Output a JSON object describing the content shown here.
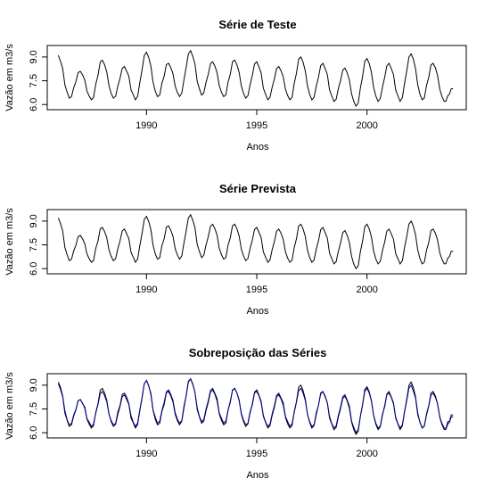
{
  "chart_data": [
    {
      "type": "line",
      "title": "Série de Teste",
      "xlabel": "Anos",
      "ylabel": "Vazão em m3/s",
      "xlim": [
        1985.5,
        2004.5
      ],
      "ylim": [
        5.9,
        9.5
      ],
      "xticks": [
        "1990",
        "1995",
        "2000"
      ],
      "yticks": [
        "6.0",
        "7.5",
        "9.0"
      ],
      "grid": false,
      "series": [
        {
          "color": "#000000",
          "x": [
            1986.0,
            1986.5,
            1987.0,
            1987.5,
            1988.0,
            1988.5,
            1989.0,
            1989.5,
            1990.0,
            1990.5,
            1991.0,
            1991.5,
            1992.0,
            1992.5,
            1993.0,
            1993.5,
            1994.0,
            1994.5,
            1995.0,
            1995.5,
            1996.0,
            1996.5,
            1997.0,
            1997.5,
            1998.0,
            1998.5,
            1999.0,
            1999.5,
            2000.0,
            2000.5,
            2001.0,
            2001.5,
            2002.0,
            2002.5,
            2003.0,
            2003.5,
            2003.9
          ],
          "y": [
            9.1,
            6.4,
            8.1,
            6.3,
            8.8,
            6.4,
            8.4,
            6.3,
            9.3,
            6.5,
            8.6,
            6.5,
            9.4,
            6.6,
            8.7,
            6.5,
            8.8,
            6.4,
            8.7,
            6.3,
            8.4,
            6.3,
            9.0,
            6.3,
            8.6,
            6.2,
            8.3,
            5.9,
            8.9,
            6.2,
            8.6,
            6.2,
            9.2,
            6.3,
            8.6,
            6.2,
            7.0
          ]
        }
      ]
    },
    {
      "type": "line",
      "title": "Série Prevista",
      "xlabel": "Anos",
      "ylabel": "Vazão em m3/s",
      "xlim": [
        1985.5,
        2004.5
      ],
      "ylim": [
        5.9,
        9.5
      ],
      "xticks": [
        "1990",
        "1995",
        "2000"
      ],
      "yticks": [
        "6.0",
        "7.5",
        "9.0"
      ],
      "grid": false,
      "series": [
        {
          "color": "#000000",
          "x": [
            1986.0,
            1986.5,
            1987.0,
            1987.5,
            1988.0,
            1988.5,
            1989.0,
            1989.5,
            1990.0,
            1990.5,
            1991.0,
            1991.5,
            1992.0,
            1992.5,
            1993.0,
            1993.5,
            1994.0,
            1994.5,
            1995.0,
            1995.5,
            1996.0,
            1996.5,
            1997.0,
            1997.5,
            1998.0,
            1998.5,
            1999.0,
            1999.5,
            2000.0,
            2000.5,
            2001.0,
            2001.5,
            2002.0,
            2002.5,
            2003.0,
            2003.5,
            2003.9
          ],
          "y": [
            9.2,
            6.5,
            8.1,
            6.4,
            8.6,
            6.5,
            8.5,
            6.4,
            9.3,
            6.6,
            8.7,
            6.6,
            9.4,
            6.7,
            8.8,
            6.6,
            8.8,
            6.5,
            8.6,
            6.4,
            8.5,
            6.4,
            8.8,
            6.4,
            8.6,
            6.3,
            8.4,
            6.0,
            8.8,
            6.3,
            8.5,
            6.3,
            9.0,
            6.3,
            8.5,
            6.3,
            7.1
          ]
        }
      ]
    },
    {
      "type": "line",
      "title": "Sobreposição das Séries",
      "xlabel": "Anos",
      "ylabel": "Vazão em m3/s",
      "xlim": [
        1985.5,
        2004.5
      ],
      "ylim": [
        5.9,
        9.5
      ],
      "xticks": [
        "1990",
        "1995",
        "2000"
      ],
      "yticks": [
        "6.0",
        "7.5",
        "9.0"
      ],
      "grid": false,
      "series": [
        {
          "color": "#000000",
          "x": [
            1986.0,
            1986.5,
            1987.0,
            1987.5,
            1988.0,
            1988.5,
            1989.0,
            1989.5,
            1990.0,
            1990.5,
            1991.0,
            1991.5,
            1992.0,
            1992.5,
            1993.0,
            1993.5,
            1994.0,
            1994.5,
            1995.0,
            1995.5,
            1996.0,
            1996.5,
            1997.0,
            1997.5,
            1998.0,
            1998.5,
            1999.0,
            1999.5,
            2000.0,
            2000.5,
            2001.0,
            2001.5,
            2002.0,
            2002.5,
            2003.0,
            2003.5,
            2003.9
          ],
          "y": [
            9.1,
            6.4,
            8.1,
            6.3,
            8.8,
            6.4,
            8.4,
            6.3,
            9.3,
            6.5,
            8.6,
            6.5,
            9.4,
            6.6,
            8.7,
            6.5,
            8.8,
            6.4,
            8.7,
            6.3,
            8.4,
            6.3,
            9.0,
            6.3,
            8.6,
            6.2,
            8.3,
            5.9,
            8.9,
            6.2,
            8.6,
            6.2,
            9.2,
            6.3,
            8.6,
            6.2,
            7.0
          ]
        },
        {
          "color": "#00008b",
          "x": [
            1986.0,
            1986.5,
            1987.0,
            1987.5,
            1988.0,
            1988.5,
            1989.0,
            1989.5,
            1990.0,
            1990.5,
            1991.0,
            1991.5,
            1992.0,
            1992.5,
            1993.0,
            1993.5,
            1994.0,
            1994.5,
            1995.0,
            1995.5,
            1996.0,
            1996.5,
            1997.0,
            1997.5,
            1998.0,
            1998.5,
            1999.0,
            1999.5,
            2000.0,
            2000.5,
            2001.0,
            2001.5,
            2002.0,
            2002.5,
            2003.0,
            2003.5,
            2003.9
          ],
          "y": [
            9.2,
            6.5,
            8.1,
            6.4,
            8.6,
            6.5,
            8.5,
            6.4,
            9.3,
            6.6,
            8.7,
            6.6,
            9.4,
            6.7,
            8.8,
            6.6,
            8.8,
            6.5,
            8.6,
            6.4,
            8.5,
            6.4,
            8.8,
            6.4,
            8.6,
            6.3,
            8.4,
            6.0,
            8.8,
            6.3,
            8.5,
            6.3,
            9.0,
            6.3,
            8.5,
            6.3,
            7.1
          ]
        }
      ]
    }
  ]
}
